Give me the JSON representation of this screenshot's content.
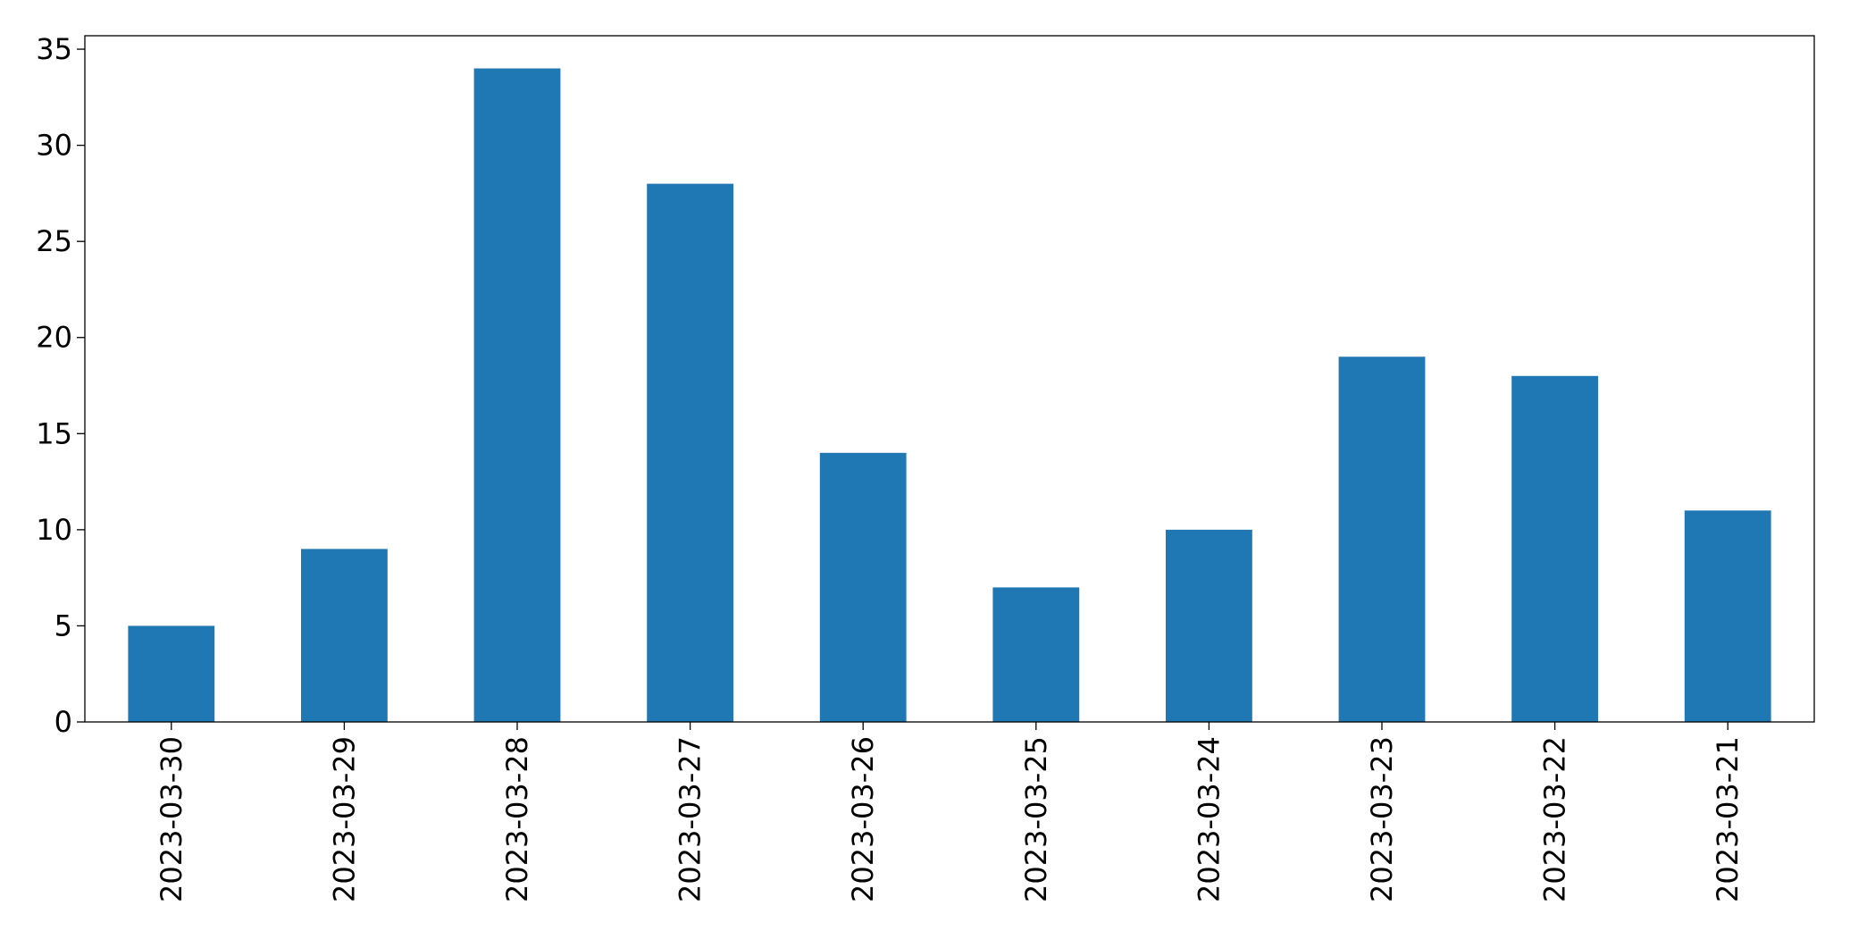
{
  "chart_data": {
    "type": "bar",
    "categories": [
      "2023-03-30",
      "2023-03-29",
      "2023-03-28",
      "2023-03-27",
      "2023-03-26",
      "2023-03-25",
      "2023-03-24",
      "2023-03-23",
      "2023-03-22",
      "2023-03-21"
    ],
    "values": [
      5,
      9,
      34,
      28,
      14,
      7,
      10,
      19,
      18,
      11
    ],
    "color": "#1f77b4",
    "ylim": [
      0,
      35.7
    ],
    "yticks": [
      0,
      5,
      10,
      15,
      20,
      25,
      30,
      35
    ],
    "grid": false
  }
}
